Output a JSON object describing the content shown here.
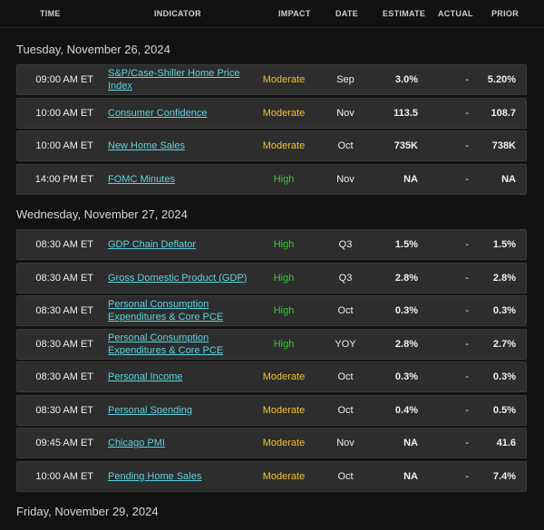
{
  "columns": [
    "TIME",
    "INDICATOR",
    "IMPACT",
    "DATE",
    "ESTIMATE",
    "ACTUAL",
    "PRIOR"
  ],
  "days": [
    {
      "label": "Tuesday, November 26, 2024",
      "events": [
        {
          "time": "09:00 AM ET",
          "indicator": "S&P/Case-Shiller Home Price Index",
          "impact": "Moderate",
          "date": "Sep",
          "estimate": "3.0%",
          "actual": "-",
          "prior": "5.20%"
        },
        {
          "time": "10:00 AM ET",
          "indicator": "Consumer Confidence",
          "impact": "Moderate",
          "date": "Nov",
          "estimate": "113.5",
          "actual": "-",
          "prior": "108.7"
        },
        {
          "time": "10:00 AM ET",
          "indicator": "New Home Sales",
          "impact": "Moderate",
          "date": "Oct",
          "estimate": "735K",
          "actual": "-",
          "prior": "738K"
        },
        {
          "time": "14:00 PM ET",
          "indicator": "FOMC Minutes",
          "impact": "High",
          "date": "Nov",
          "estimate": "NA",
          "actual": "-",
          "prior": "NA"
        }
      ]
    },
    {
      "label": "Wednesday, November 27, 2024",
      "events": [
        {
          "time": "08:30 AM ET",
          "indicator": "GDP Chain Deflator",
          "impact": "High",
          "date": "Q3",
          "estimate": "1.5%",
          "actual": "-",
          "prior": "1.5%"
        },
        {
          "time": "08:30 AM ET",
          "indicator": "Gross Domestic Product (GDP)",
          "impact": "High",
          "date": "Q3",
          "estimate": "2.8%",
          "actual": "-",
          "prior": "2.8%"
        },
        {
          "time": "08:30 AM ET",
          "indicator": "Personal Consumption Expenditures & Core PCE",
          "impact": "High",
          "date": "Oct",
          "estimate": "0.3%",
          "actual": "-",
          "prior": "0.3%"
        },
        {
          "time": "08:30 AM ET",
          "indicator": "Personal Consumption Expenditures & Core PCE",
          "impact": "High",
          "date": "YOY",
          "estimate": "2.8%",
          "actual": "-",
          "prior": "2.7%"
        },
        {
          "time": "08:30 AM ET",
          "indicator": "Personal Income",
          "impact": "Moderate",
          "date": "Oct",
          "estimate": "0.3%",
          "actual": "-",
          "prior": "0.3%"
        },
        {
          "time": "08:30 AM ET",
          "indicator": "Personal Spending",
          "impact": "Moderate",
          "date": "Oct",
          "estimate": "0.4%",
          "actual": "-",
          "prior": "0.5%"
        },
        {
          "time": "09:45 AM ET",
          "indicator": "Chicago PMI",
          "impact": "Moderate",
          "date": "Nov",
          "estimate": "NA",
          "actual": "-",
          "prior": "41.6"
        },
        {
          "time": "10:00 AM ET",
          "indicator": "Pending Home Sales",
          "impact": "Moderate",
          "date": "Oct",
          "estimate": "NA",
          "actual": "-",
          "prior": "7.4%"
        }
      ]
    },
    {
      "label": "Friday, November 29, 2024",
      "events": []
    }
  ],
  "colors": {
    "background": "#121212",
    "row": "#2d2d2d",
    "link": "#5fd3e0",
    "moderate": "#f1c232",
    "high": "#33cc33"
  }
}
